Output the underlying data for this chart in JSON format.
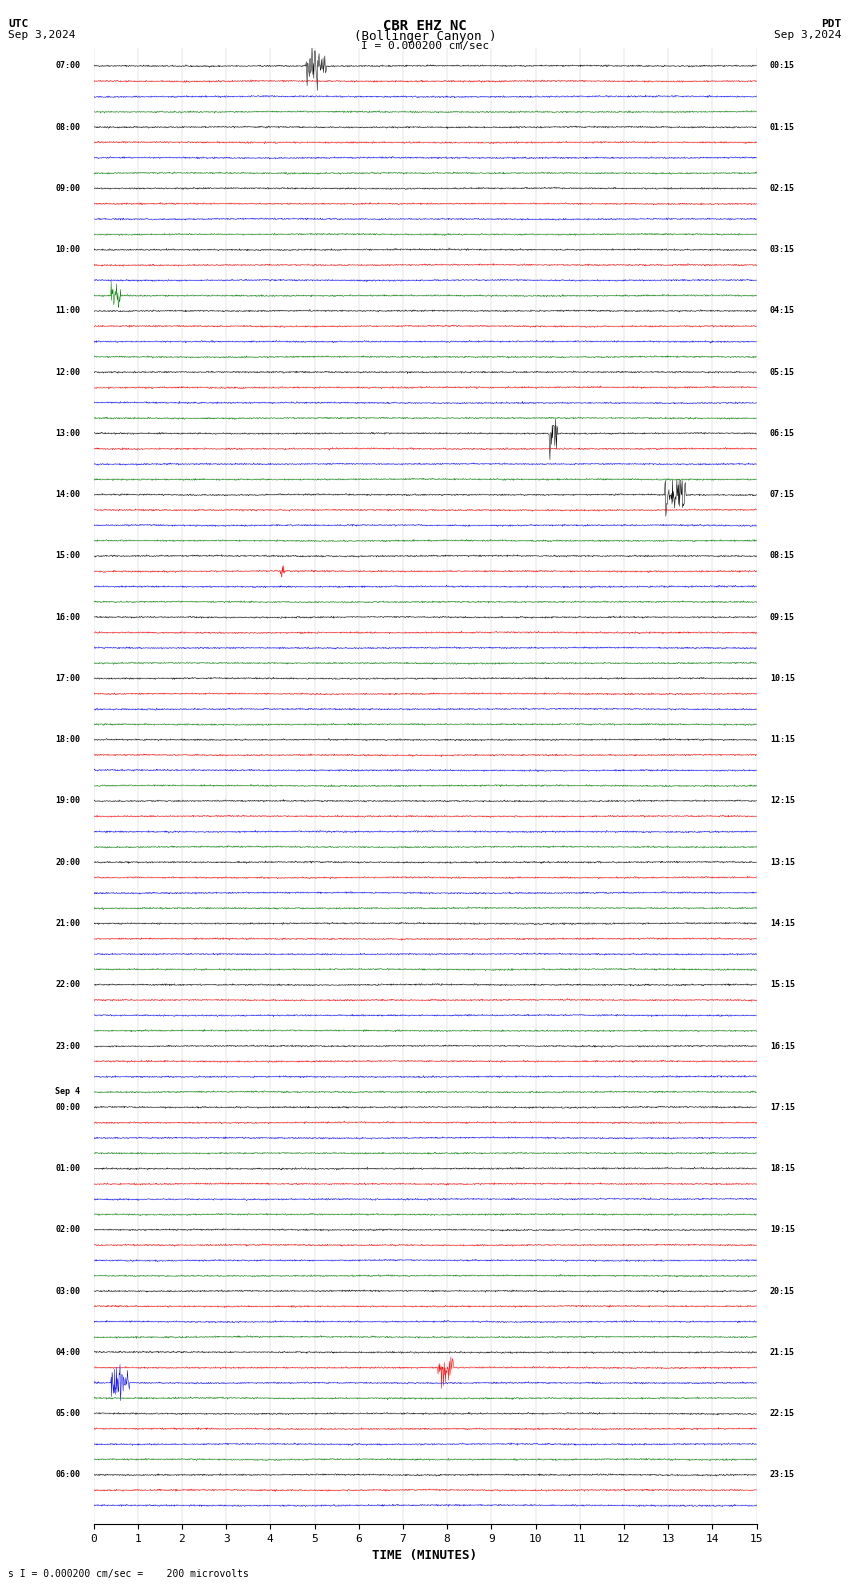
{
  "title_line1": "CBR EHZ NC",
  "title_line2": "(Bollinger Canyon )",
  "scale_text": "I = 0.000200 cm/sec",
  "utc_label": "UTC",
  "pdt_label": "PDT",
  "date_left": "Sep 3,2024",
  "date_right": "Sep 3,2024",
  "xlabel": "TIME (MINUTES)",
  "footer_text": "s I = 0.000200 cm/sec =    200 microvolts",
  "xlim": [
    0,
    15
  ],
  "xticks": [
    0,
    1,
    2,
    3,
    4,
    5,
    6,
    7,
    8,
    9,
    10,
    11,
    12,
    13,
    14,
    15
  ],
  "bg_color": "#ffffff",
  "grid_color": "#999999",
  "colors_cycle": [
    "black",
    "red",
    "blue",
    "green"
  ],
  "left_labels": [
    [
      "07:00",
      0
    ],
    [
      "08:00",
      4
    ],
    [
      "09:00",
      8
    ],
    [
      "10:00",
      12
    ],
    [
      "11:00",
      16
    ],
    [
      "12:00",
      20
    ],
    [
      "13:00",
      24
    ],
    [
      "14:00",
      28
    ],
    [
      "15:00",
      32
    ],
    [
      "16:00",
      36
    ],
    [
      "17:00",
      40
    ],
    [
      "18:00",
      44
    ],
    [
      "19:00",
      48
    ],
    [
      "20:00",
      52
    ],
    [
      "21:00",
      56
    ],
    [
      "22:00",
      60
    ],
    [
      "23:00",
      64
    ],
    [
      "Sep 4",
      67
    ],
    [
      "00:00",
      68
    ],
    [
      "01:00",
      72
    ],
    [
      "02:00",
      76
    ],
    [
      "03:00",
      80
    ],
    [
      "04:00",
      84
    ],
    [
      "05:00",
      88
    ],
    [
      "06:00",
      92
    ]
  ],
  "right_labels": [
    [
      "00:15",
      0
    ],
    [
      "01:15",
      4
    ],
    [
      "02:15",
      8
    ],
    [
      "03:15",
      12
    ],
    [
      "04:15",
      16
    ],
    [
      "05:15",
      20
    ],
    [
      "06:15",
      24
    ],
    [
      "07:15",
      28
    ],
    [
      "08:15",
      32
    ],
    [
      "09:15",
      36
    ],
    [
      "10:15",
      40
    ],
    [
      "11:15",
      44
    ],
    [
      "12:15",
      48
    ],
    [
      "13:15",
      52
    ],
    [
      "14:15",
      56
    ],
    [
      "15:15",
      60
    ],
    [
      "16:15",
      64
    ],
    [
      "17:15",
      68
    ],
    [
      "18:15",
      72
    ],
    [
      "19:15",
      76
    ],
    [
      "20:15",
      80
    ],
    [
      "21:15",
      84
    ],
    [
      "22:15",
      88
    ],
    [
      "23:15",
      92
    ]
  ],
  "n_rows": 95,
  "noise_amplitude": 0.28,
  "noise_seed": 42
}
